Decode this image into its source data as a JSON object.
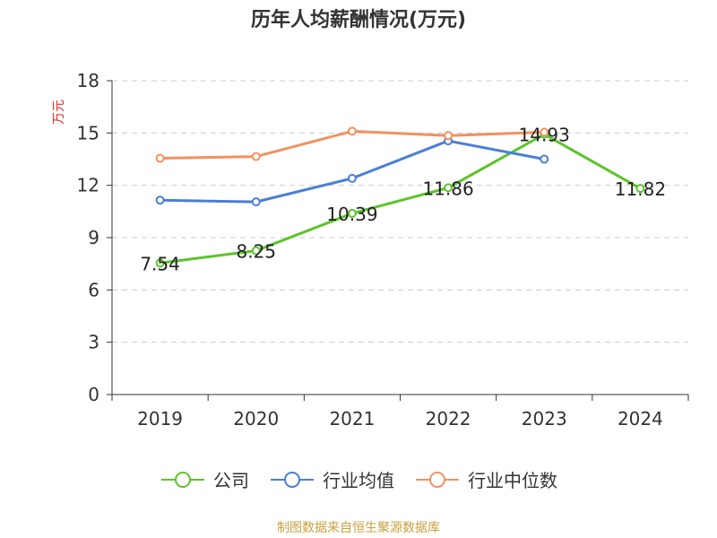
{
  "chart_data": {
    "type": "line",
    "title": "历年人均薪酬情况(万元)",
    "ylabel": "万元",
    "xlabel": "",
    "ylim": [
      0,
      18
    ],
    "yticks": [
      0,
      3,
      6,
      9,
      12,
      15,
      18
    ],
    "categories": [
      "2019",
      "2020",
      "2021",
      "2022",
      "2023",
      "2024"
    ],
    "grid": true,
    "legend_position": "bottom",
    "series": [
      {
        "name": "公司",
        "color": "#5cc42b",
        "values": [
          7.54,
          8.25,
          10.39,
          11.86,
          14.93,
          11.82
        ],
        "labels": [
          "7.54",
          "8.25",
          "10.39",
          "11.86",
          "14.93",
          "11.82"
        ]
      },
      {
        "name": "行业均值",
        "color": "#4a7fd6",
        "values": [
          11.15,
          11.05,
          12.4,
          14.55,
          13.5,
          null
        ]
      },
      {
        "name": "行业中位数",
        "color": "#f39160",
        "values": [
          13.55,
          13.65,
          15.1,
          14.85,
          15.05,
          null
        ]
      }
    ]
  },
  "source_note": "制图数据来自恒生聚源数据库"
}
